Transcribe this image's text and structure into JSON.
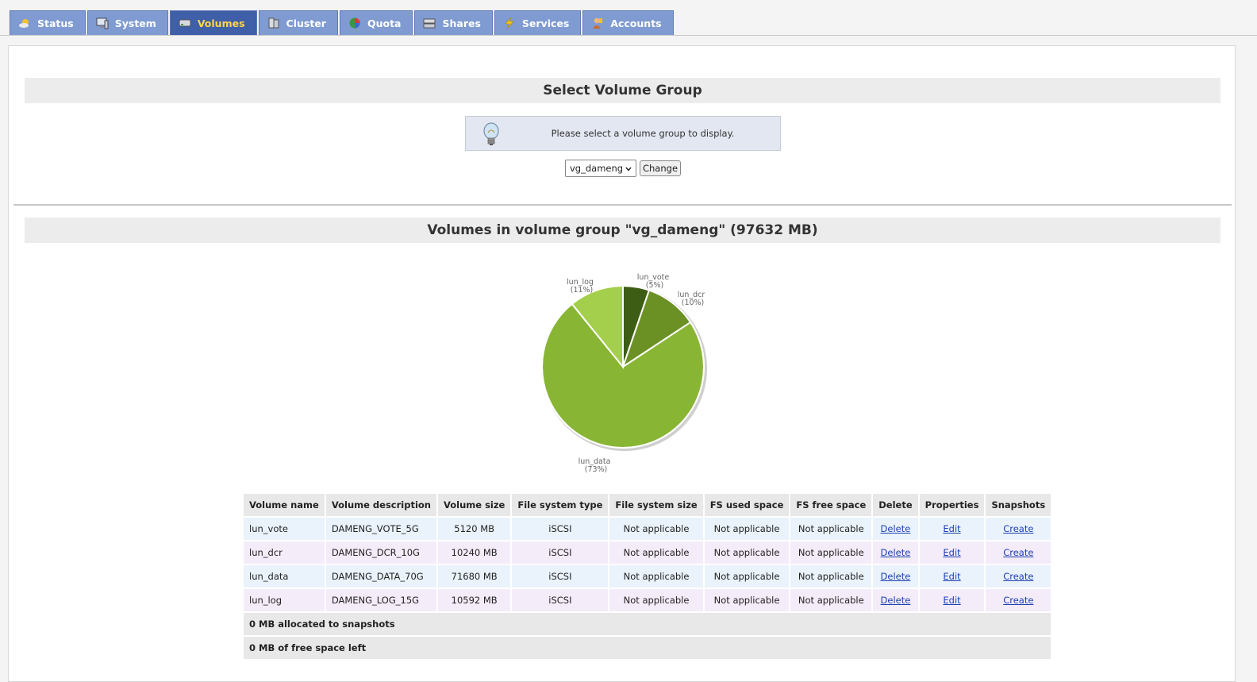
{
  "nav": {
    "tabs": [
      {
        "label": "Status",
        "icon": "status-icon"
      },
      {
        "label": "System",
        "icon": "system-icon"
      },
      {
        "label": "Volumes",
        "icon": "volumes-icon",
        "active": true
      },
      {
        "label": "Cluster",
        "icon": "cluster-icon"
      },
      {
        "label": "Quota",
        "icon": "quota-icon"
      },
      {
        "label": "Shares",
        "icon": "shares-icon"
      },
      {
        "label": "Services",
        "icon": "services-icon"
      },
      {
        "label": "Accounts",
        "icon": "accounts-icon"
      }
    ]
  },
  "select_section": {
    "title": "Select Volume Group",
    "info_message": "Please select a volume group to display.",
    "selected_group": "vg_dameng",
    "change_label": "Change"
  },
  "volumes_section": {
    "title": "Volumes in volume group \"vg_dameng\" (97632 MB)"
  },
  "chart_data": {
    "type": "pie",
    "slices": [
      {
        "label": "lun_vote",
        "percent_label": "(5%)",
        "value": 5120,
        "color": "#3d5d14"
      },
      {
        "label": "lun_dcr",
        "percent_label": "(10%)",
        "value": 10240,
        "color": "#6b9125"
      },
      {
        "label": "lun_data",
        "percent_label": "(73%)",
        "value": 71680,
        "color": "#89b535"
      },
      {
        "label": "lun_log",
        "percent_label": "(11%)",
        "value": 10592,
        "color": "#a3cf4c"
      }
    ]
  },
  "table": {
    "headers": [
      "Volume name",
      "Volume description",
      "Volume size",
      "File system type",
      "File system size",
      "FS used space",
      "FS free space",
      "Delete",
      "Properties",
      "Snapshots"
    ],
    "rows": [
      {
        "name": "lun_vote",
        "description": "DAMENG_VOTE_5G",
        "size": "5120 MB",
        "fs_type": "iSCSI",
        "fs_size": "Not applicable",
        "fs_used": "Not applicable",
        "fs_free": "Not applicable",
        "delete": "Delete",
        "properties": "Edit",
        "snapshots": "Create"
      },
      {
        "name": "lun_dcr",
        "description": "DAMENG_DCR_10G",
        "size": "10240 MB",
        "fs_type": "iSCSI",
        "fs_size": "Not applicable",
        "fs_used": "Not applicable",
        "fs_free": "Not applicable",
        "delete": "Delete",
        "properties": "Edit",
        "snapshots": "Create"
      },
      {
        "name": "lun_data",
        "description": "DAMENG_DATA_70G",
        "size": "71680 MB",
        "fs_type": "iSCSI",
        "fs_size": "Not applicable",
        "fs_used": "Not applicable",
        "fs_free": "Not applicable",
        "delete": "Delete",
        "properties": "Edit",
        "snapshots": "Create"
      },
      {
        "name": "lun_log",
        "description": "DAMENG_LOG_15G",
        "size": "10592 MB",
        "fs_type": "iSCSI",
        "fs_size": "Not applicable",
        "fs_used": "Not applicable",
        "fs_free": "Not applicable",
        "delete": "Delete",
        "properties": "Edit",
        "snapshots": "Create"
      }
    ],
    "summary": [
      "0 MB allocated to snapshots",
      "0 MB of free space left"
    ]
  }
}
